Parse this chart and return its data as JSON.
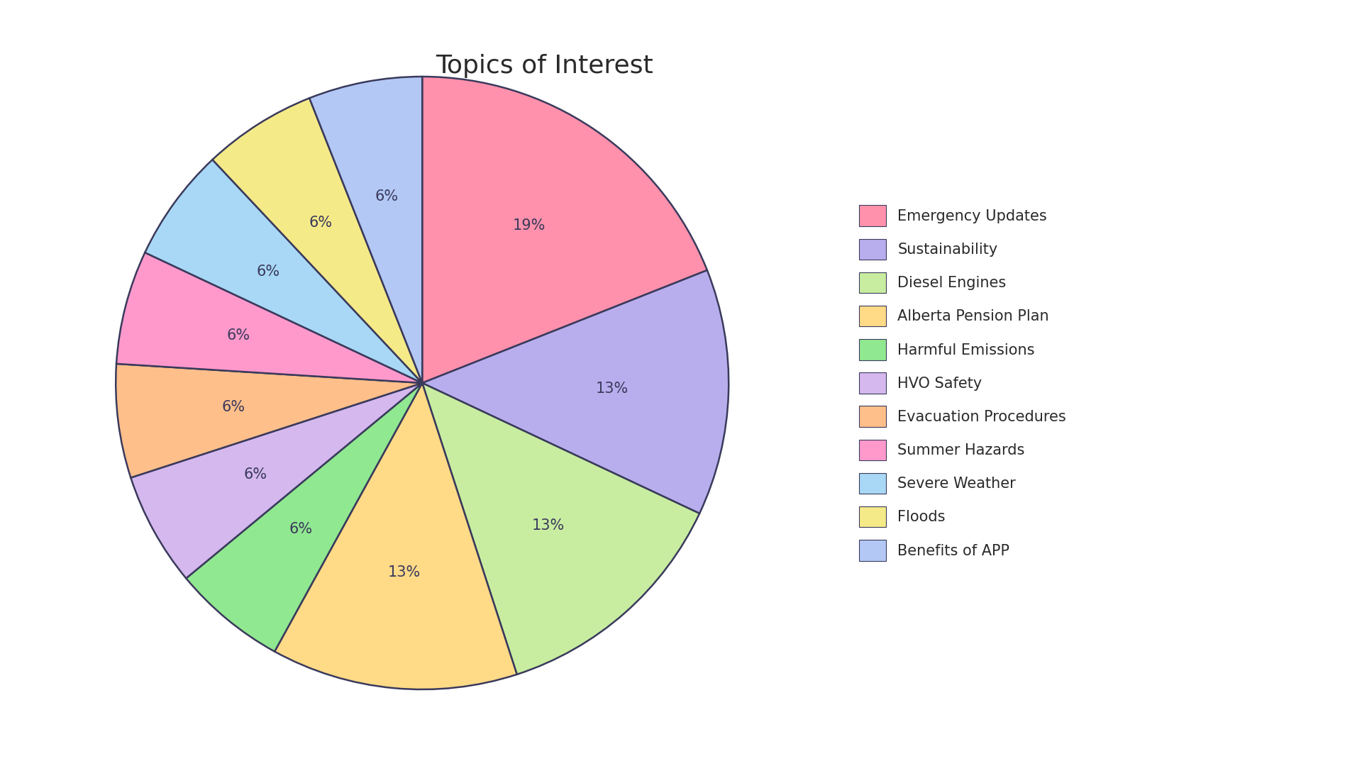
{
  "title": "Topics of Interest",
  "labels": [
    "Emergency Updates",
    "Sustainability",
    "Diesel Engines",
    "Alberta Pension Plan",
    "Harmful Emissions",
    "HVO Safety",
    "Evacuation Procedures",
    "Summer Hazards",
    "Severe Weather",
    "Floods",
    "Benefits of APP"
  ],
  "values": [
    19,
    13,
    13,
    13,
    6,
    6,
    6,
    6,
    6,
    6,
    6
  ],
  "colors": [
    "#FF91AC",
    "#B8AEED",
    "#C8EDA0",
    "#FFDA87",
    "#90E890",
    "#D4B8EE",
    "#FFBF8A",
    "#FF99CC",
    "#A8D8F5",
    "#F5EA88",
    "#B3C8F5"
  ],
  "pct_labels": [
    "19%",
    "13%",
    "13%",
    "13%",
    "6%",
    "6%",
    "6%",
    "6%",
    "6%",
    "6%",
    "6%"
  ],
  "title_fontsize": 26,
  "pct_fontsize": 15,
  "legend_fontsize": 15,
  "edge_color": "#3A3A5C",
  "edge_linewidth": 1.8,
  "background_color": "#FFFFFF"
}
